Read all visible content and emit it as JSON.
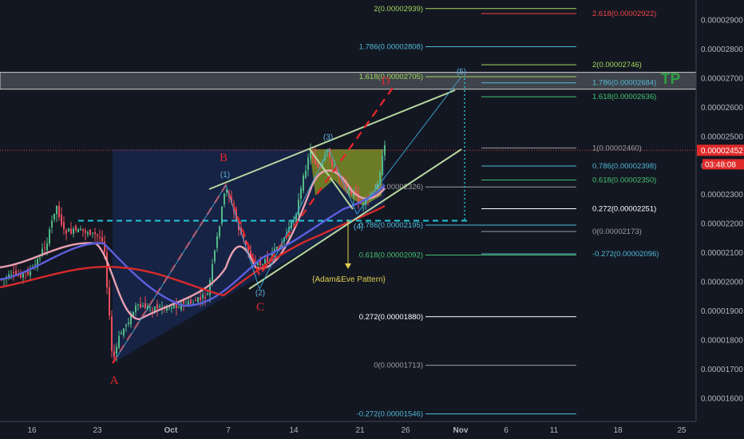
{
  "chart_data": {
    "type": "candlestick",
    "title": "",
    "x_axis": {
      "tick_labels": [
        "16",
        "23",
        "Oct",
        "7",
        "14",
        "21",
        "26",
        "Nov",
        "6",
        "11",
        "18",
        "25"
      ]
    },
    "y_axis": {
      "range": [
        1.54e-05,
        2.96e-05
      ],
      "tick_labels": [
        "0.00002900",
        "0.00002800",
        "0.00002700",
        "0.00002600",
        "0.00002500",
        "0.00002400",
        "0.00002300",
        "0.00002200",
        "0.00002100",
        "0.00002000",
        "0.00001900",
        "0.00001800",
        "0.00001700",
        "0.00001600"
      ]
    },
    "last_price": {
      "label": "0.00002452",
      "countdown": "03:48:08",
      "value": 2.452e-05
    },
    "grid": false,
    "moving_averages": [
      {
        "color": "#e8a0b0"
      },
      {
        "color": "#5d5fe0"
      },
      {
        "color": "#d62a2a"
      }
    ],
    "annotations": {
      "tp_label": "TP",
      "pattern_label": "{Adam&Eve Pattern}",
      "abcd": [
        "A",
        "B",
        "C",
        "D"
      ],
      "waves": [
        "(1)",
        "(2)",
        "(3)",
        "(4)",
        "(5)"
      ],
      "neckline": 2.21e-05
    },
    "fib_levels_left": [
      {
        "label": "2(0.00002939)",
        "value": 2.939e-05,
        "color": "#a5d65c"
      },
      {
        "label": "1.786(0.00002808)",
        "value": 2.808e-05,
        "color": "#4fb9d6"
      },
      {
        "label": "1.618(0.00002705)",
        "value": 2.705e-05,
        "color": "#a5d65c"
      },
      {
        "label": "1(0.00002326)",
        "value": 2.326e-05,
        "color": "#9e9e9e"
      },
      {
        "label": "0.786(0.00002195)",
        "value": 2.195e-05,
        "color": "#4fb9d6"
      },
      {
        "label": "0.618(0.00002092)",
        "value": 2.092e-05,
        "color": "#44c26e"
      },
      {
        "label": "0.272(0.00001880)",
        "value": 1.88e-05,
        "color": "#ffffff"
      },
      {
        "label": "0(0.00001713)",
        "value": 1.713e-05,
        "color": "#9e9e9e"
      },
      {
        "label": "-0.272(0.00001546)",
        "value": 1.546e-05,
        "color": "#4fb9d6"
      }
    ],
    "fib_levels_right": [
      {
        "label": "2.618(0.00002922)",
        "value": 2.922e-05,
        "color": "#ef4444"
      },
      {
        "label": "2(0.00002746)",
        "value": 2.746e-05,
        "color": "#a5d65c"
      },
      {
        "label": "1.786(0.00002684)",
        "value": 2.684e-05,
        "color": "#4fb9d6"
      },
      {
        "label": "1.618(0.00002636)",
        "value": 2.636e-05,
        "color": "#44c26e"
      },
      {
        "label": "1(0.00002460)",
        "value": 2.46e-05,
        "color": "#9e9e9e"
      },
      {
        "label": "0.786(0.00002398)",
        "value": 2.398e-05,
        "color": "#4fb9d6"
      },
      {
        "label": "0.618(0.00002350)",
        "value": 2.35e-05,
        "color": "#44c26e"
      },
      {
        "label": "0.272(0.00002251)",
        "value": 2.251e-05,
        "color": "#ffffff"
      },
      {
        "label": "0(0.00002173)",
        "value": 2.173e-05,
        "color": "#9e9e9e"
      },
      {
        "label": "-0.272(0.00002096)",
        "value": 2.096e-05,
        "color": "#4fb9d6"
      }
    ],
    "tp_zone": [
      2.662e-05,
      2.72e-05
    ],
    "colors": {
      "background": "#131722",
      "up": "#53b987",
      "down": "#eb4d5c",
      "abcd": "#e0262b",
      "channel": "#b8d8a0",
      "neckline": "#26c6da",
      "tp": "#2ea043",
      "pattern": "#e0d050"
    }
  }
}
